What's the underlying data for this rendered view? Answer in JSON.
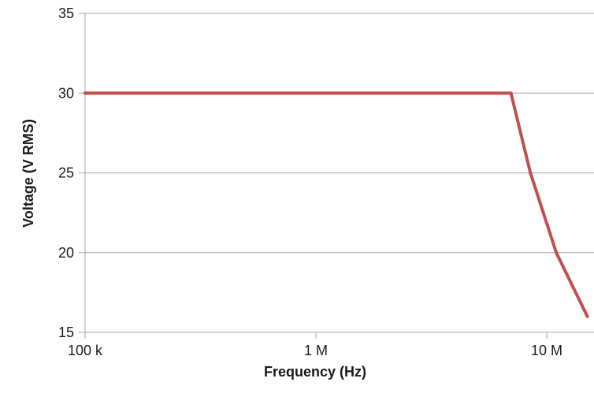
{
  "chart_data": {
    "type": "line",
    "title": "",
    "xlabel": "Frequency (Hz)",
    "ylabel": "Voltage (V RMS)",
    "x_scale": "log",
    "xlim": [
      100000,
      15000000
    ],
    "ylim": [
      15,
      35
    ],
    "x_ticks": [
      {
        "value": 100000,
        "label": "100 k"
      },
      {
        "value": 1000000,
        "label": "1 M"
      },
      {
        "value": 10000000,
        "label": "10 M"
      }
    ],
    "y_ticks": [
      {
        "value": 15,
        "label": "15"
      },
      {
        "value": 20,
        "label": "20"
      },
      {
        "value": 25,
        "label": "25"
      },
      {
        "value": 30,
        "label": "30"
      },
      {
        "value": 35,
        "label": "35"
      }
    ],
    "grid": "horizontal",
    "legend": "none",
    "series": [
      {
        "color": "#c0504d",
        "x": [
          100000,
          7000000,
          8500000,
          11000000,
          15000000
        ],
        "y": [
          30,
          30,
          25,
          20,
          16
        ]
      }
    ]
  }
}
